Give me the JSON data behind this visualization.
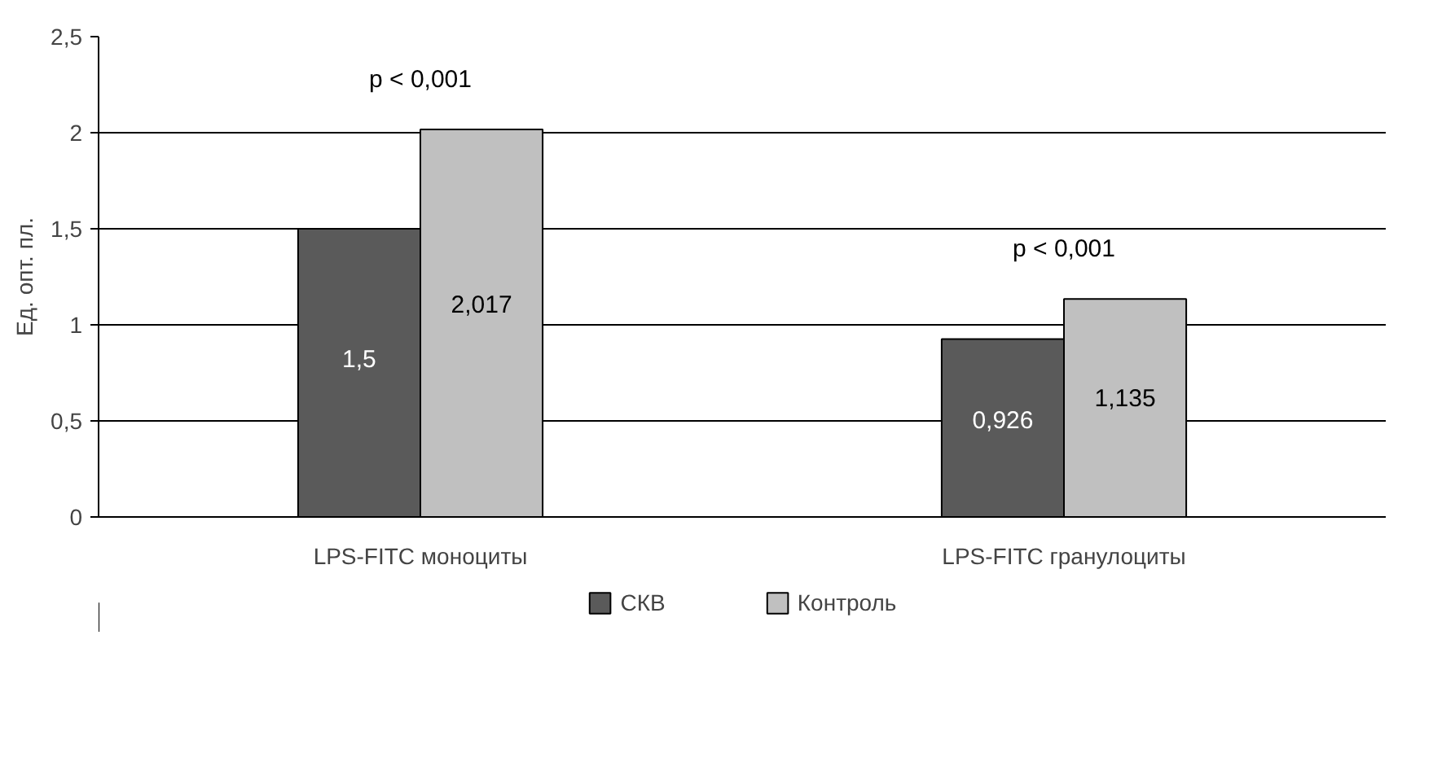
{
  "chart_data": {
    "type": "bar",
    "ylabel": "Ед. опт. пл.",
    "categories": [
      "LPS-FITC моноциты",
      "LPS-FITC гранулоциты"
    ],
    "series": [
      {
        "name": "СКВ",
        "color": "#5a5a5a",
        "values": [
          1.5,
          0.926
        ],
        "value_labels": [
          "1,5",
          "0,926"
        ]
      },
      {
        "name": "Контроль",
        "color": "#c0c0c0",
        "values": [
          2.017,
          1.135
        ],
        "value_labels": [
          "2,017",
          "1,135"
        ]
      }
    ],
    "ylim": [
      0,
      2.5
    ],
    "yticks": [
      0,
      {
        "value": 0.5,
        "label": "0,5"
      },
      1,
      {
        "value": 1.5,
        "label": "1,5"
      },
      2,
      {
        "value": 2.5,
        "label": "2,5"
      }
    ],
    "grid": "y",
    "legend": "bottom",
    "annotations": [
      "p < 0,001",
      "p < 0,001"
    ]
  }
}
